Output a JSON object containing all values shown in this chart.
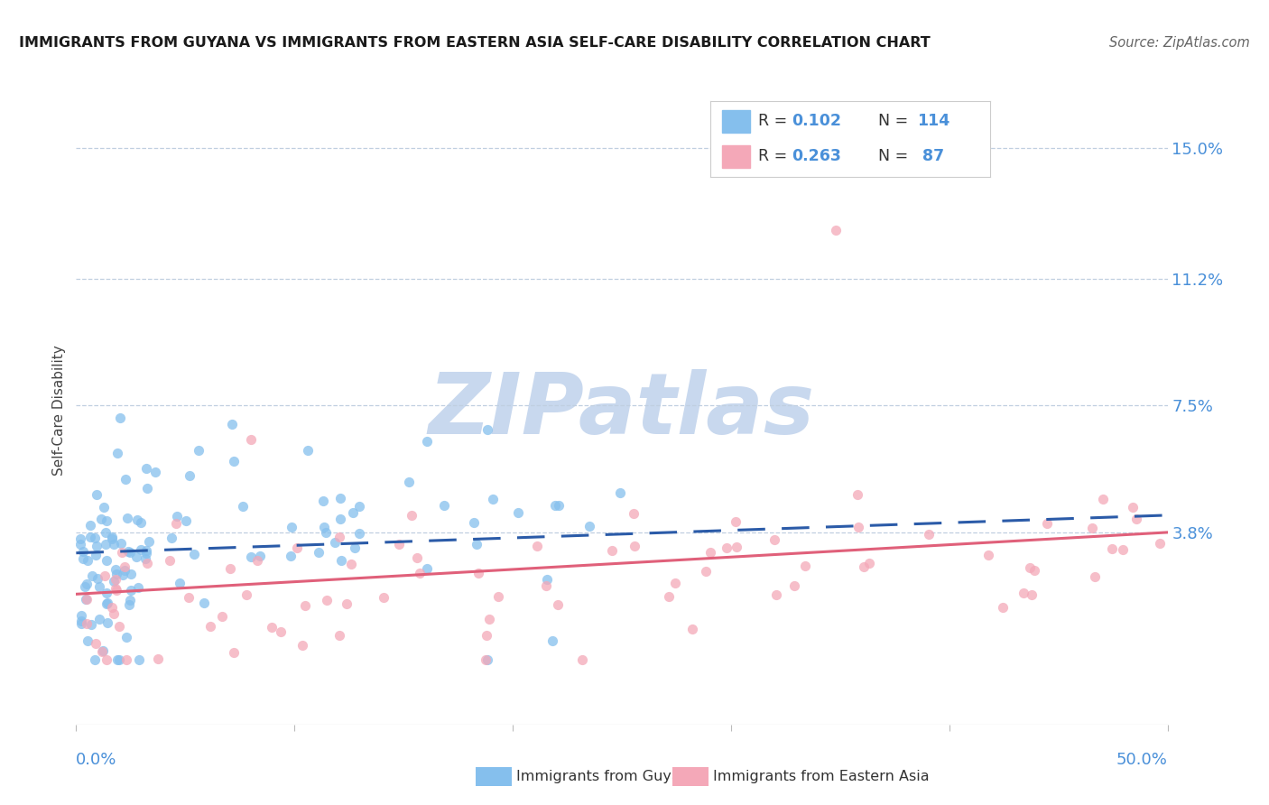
{
  "title": "IMMIGRANTS FROM GUYANA VS IMMIGRANTS FROM EASTERN ASIA SELF-CARE DISABILITY CORRELATION CHART",
  "source": "Source: ZipAtlas.com",
  "ylabel": "Self-Care Disability",
  "ytick_labels": [
    "15.0%",
    "11.2%",
    "7.5%",
    "3.8%"
  ],
  "ytick_values": [
    0.15,
    0.112,
    0.075,
    0.038
  ],
  "xlim": [
    0.0,
    0.5
  ],
  "ylim": [
    -0.018,
    0.165
  ],
  "legend_blue_r": "R = 0.102",
  "legend_blue_n": "N = 114",
  "legend_pink_r": "R = 0.263",
  "legend_pink_n": "N =  87",
  "blue_color": "#85BFED",
  "pink_color": "#F4A8B8",
  "blue_line_color": "#2B5BA8",
  "pink_line_color": "#E0607A",
  "title_color": "#1a1a1a",
  "axis_label_color": "#4A90D9",
  "watermark_color": "#C8D8EE",
  "blue_line_y0": 0.032,
  "blue_line_y1": 0.043,
  "pink_line_y0": 0.02,
  "pink_line_y1": 0.038
}
